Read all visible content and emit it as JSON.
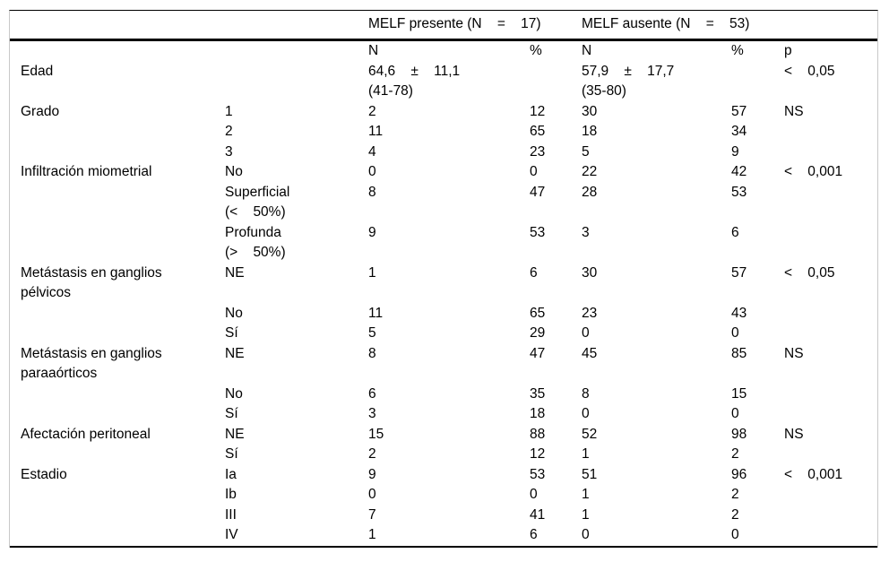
{
  "table": {
    "group_header": {
      "group1": "MELF presente (N    =    17)",
      "group2": "MELF ausente (N    =    53)"
    },
    "subheader": {
      "n1": "N",
      "pct1": "%",
      "n2": "N",
      "pct2": "%",
      "p": "p"
    },
    "rows": [
      {
        "category": "Edad",
        "sub": "",
        "n1": "64,6    ±    11,1\n(41-78)",
        "pct1": "",
        "n2": "57,9    ±    17,7\n(35-80)",
        "pct2": "",
        "p": "<    0,05"
      },
      {
        "category": "Grado",
        "sub": "1",
        "n1": "2",
        "pct1": "12",
        "n2": "30",
        "pct2": "57",
        "p": "NS"
      },
      {
        "category": "",
        "sub": "2",
        "n1": "11",
        "pct1": "65",
        "n2": "18",
        "pct2": "34",
        "p": ""
      },
      {
        "category": "",
        "sub": "3",
        "n1": "4",
        "pct1": "23",
        "n2": "5",
        "pct2": "9",
        "p": ""
      },
      {
        "category": "Infiltración miometrial",
        "sub": "No",
        "n1": "0",
        "pct1": "0",
        "n2": "22",
        "pct2": "42",
        "p": "<    0,001"
      },
      {
        "category": "",
        "sub": "Superficial\n(<    50%)",
        "n1": "8",
        "pct1": "47",
        "n2": "28",
        "pct2": "53",
        "p": ""
      },
      {
        "category": "",
        "sub": "Profunda\n(>    50%)",
        "n1": "9",
        "pct1": "53",
        "n2": "3",
        "pct2": "6",
        "p": ""
      },
      {
        "category": "Metástasis en ganglios\npélvicos",
        "sub": "NE",
        "n1": "1",
        "pct1": "6",
        "n2": "30",
        "pct2": "57",
        "p": "<    0,05"
      },
      {
        "category": "",
        "sub": "No",
        "n1": "11",
        "pct1": "65",
        "n2": "23",
        "pct2": "43",
        "p": ""
      },
      {
        "category": "",
        "sub": "Sí",
        "n1": "5",
        "pct1": "29",
        "n2": "0",
        "pct2": "0",
        "p": ""
      },
      {
        "category": "Metástasis en ganglios\nparaaórticos",
        "sub": "NE",
        "n1": "8",
        "pct1": "47",
        "n2": "45",
        "pct2": "85",
        "p": "NS"
      },
      {
        "category": "",
        "sub": "No",
        "n1": "6",
        "pct1": "35",
        "n2": "8",
        "pct2": "15",
        "p": ""
      },
      {
        "category": "",
        "sub": "Sí",
        "n1": "3",
        "pct1": "18",
        "n2": "0",
        "pct2": "0",
        "p": ""
      },
      {
        "category": "Afectación peritoneal",
        "sub": "NE",
        "n1": "15",
        "pct1": "88",
        "n2": "52",
        "pct2": "98",
        "p": "NS"
      },
      {
        "category": "",
        "sub": "Sí",
        "n1": "2",
        "pct1": "12",
        "n2": "1",
        "pct2": "2",
        "p": ""
      },
      {
        "category": "Estadio",
        "sub": "Ia",
        "n1": "9",
        "pct1": "53",
        "n2": "51",
        "pct2": "96",
        "p": "<    0,001"
      },
      {
        "category": "",
        "sub": "Ib",
        "n1": "0",
        "pct1": "0",
        "n2": "1",
        "pct2": "2",
        "p": ""
      },
      {
        "category": "",
        "sub": "III",
        "n1": "7",
        "pct1": "41",
        "n2": "1",
        "pct2": "2",
        "p": ""
      },
      {
        "category": "",
        "sub": "IV",
        "n1": "1",
        "pct1": "6",
        "n2": "0",
        "pct2": "0",
        "p": ""
      }
    ]
  }
}
